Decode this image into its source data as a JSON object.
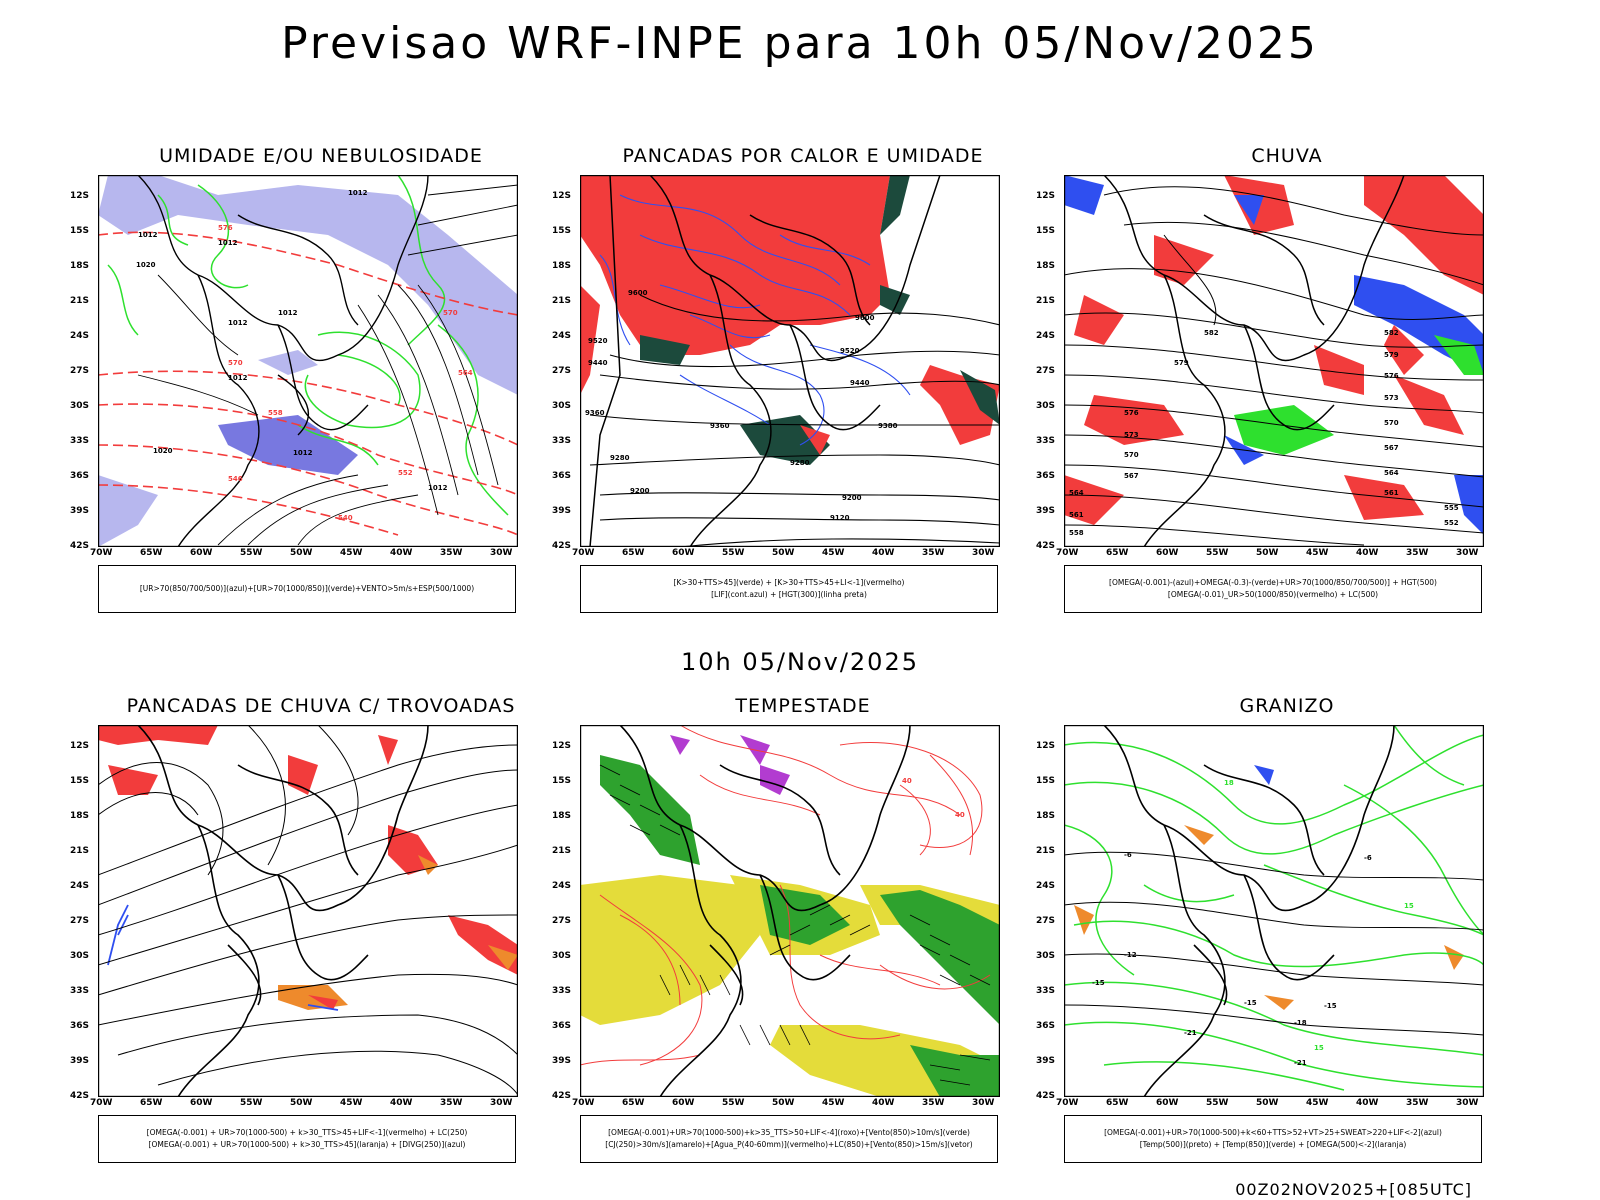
{
  "title": "Previsao WRF-INPE  para 10h 05/Nov/2025",
  "subtitle_mid": "10h 05/Nov/2025",
  "footer": "00Z02NOV2025+[085UTC]",
  "axes": {
    "lat_labels": [
      "12S",
      "15S",
      "18S",
      "21S",
      "24S",
      "27S",
      "30S",
      "33S",
      "36S",
      "39S",
      "42S"
    ],
    "lon_labels": [
      "70W",
      "65W",
      "60W",
      "55W",
      "50W",
      "45W",
      "40W",
      "35W",
      "30W"
    ]
  },
  "colors": {
    "red": "#f23c3c",
    "green": "#2ee02e",
    "blue": "#2f4ff0",
    "lavender": "#b7b7ee",
    "yellow": "#e4dc3a",
    "darkgreen": "#1c4a3c",
    "orange": "#ee8a2c",
    "purple": "#b23cd0"
  },
  "panels": [
    {
      "title": "UMIDADE E/OU NEBULOSIDADE",
      "legend": [
        "[UR>70(850/700/500)](azul)+[UR>70(1000/850)](verde)+VENTO>5m/s+ESP(500/1000)"
      ],
      "contour_labels": [
        "1012",
        "1012",
        "1020",
        "1012",
        "1012",
        "1012",
        "1012",
        "1012",
        "1020",
        "1012",
        "570",
        "576",
        "570",
        "564",
        "558",
        "552",
        "546",
        "540"
      ]
    },
    {
      "title": "PANCADAS POR CALOR E UMIDADE",
      "legend": [
        "[K>30+TTS>45](verde) + [K>30+TTS>45+LI<-1](vermelho)",
        "[LIF](cont.azul) + [HGT(300)](linha preta)"
      ],
      "contour_labels": [
        "9600",
        "9520",
        "9440",
        "9360",
        "9280",
        "9200",
        "9120",
        "9600",
        "9520",
        "9440",
        "9380",
        "9280",
        "9200",
        "9360"
      ]
    },
    {
      "title": "CHUVA",
      "legend": [
        "[OMEGA(-0.001)-(azul)+OMEGA(-0.3)-(verde)+UR>70(1000/850/700/500)] + HGT(500)",
        "[OMEGA(-0.01)_UR>50(1000/850)(vermelho) + LC(500)"
      ],
      "contour_labels": [
        "582",
        "579",
        "576",
        "573",
        "570",
        "567",
        "564",
        "561",
        "582",
        "579",
        "576",
        "573",
        "570",
        "567",
        "564",
        "561",
        "558",
        "555",
        "552"
      ]
    },
    {
      "title": "PANCADAS DE CHUVA C/ TROVOADAS",
      "legend": [
        "[OMEGA(-0.001) + UR>70(1000-500) + k>30_TTS>45+LIF<-1](vermelho) + LC(250)",
        "[OMEGA(-0.001) + UR>70(1000-500) + k>30_TTS>45](laranja) + [DIVG(250)](azul)"
      ],
      "contour_labels": []
    },
    {
      "title": "TEMPESTADE",
      "legend": [
        "[OMEGA(-0.001)+UR>70(1000-500)+k>35_TTS>50+LIF<-4](roxo)+[Vento(850)>10m/s](verde)",
        "[CJ(250)>30m/s](amarelo)+[Agua_P(40-60mm)](vermelho)+LC(850)+[Vento(850)>15m/s](vetor)"
      ],
      "contour_labels": [
        "40",
        "40"
      ]
    },
    {
      "title": "GRANIZO",
      "legend": [
        "[OMEGA(-0.001)+UR>70(1000-500)+k<60+TTS>52+VT>25+SWEAT>220+LIF<-2](azul)",
        "[Temp(500)](preto) + [Temp(850)](verde) + [OMEGA(500)<-2](laranja)"
      ],
      "contour_labels": [
        "-6",
        "-6",
        "-12",
        "-15",
        "-15",
        "-15",
        "-18",
        "-21",
        "-21",
        "15",
        "15",
        "18"
      ]
    }
  ]
}
